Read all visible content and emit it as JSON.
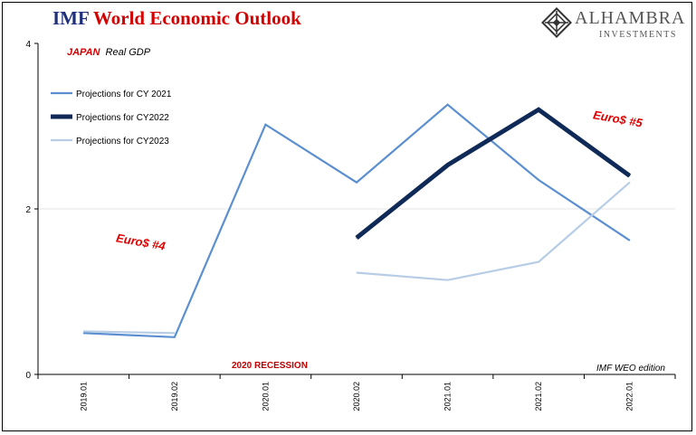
{
  "header": {
    "title_prefix": "IMF",
    "title_main": "World Economic Outlook",
    "logo_name": "ALHAMBRA",
    "logo_sub": "INVESTMENTS"
  },
  "chart_data": {
    "type": "line",
    "subtitle_country": "JAPAN",
    "subtitle_rest": "Real GDP",
    "categories": [
      "2019.01",
      "2019.02",
      "2020.01",
      "2020.02",
      "2021.01",
      "2021.02",
      "2022.01"
    ],
    "ylim": [
      0,
      4
    ],
    "yticks": [
      0,
      2,
      4
    ],
    "series": [
      {
        "name": "Projections for CY 2021",
        "color": "#5b8fd0",
        "width": 2.2,
        "values": [
          0.5,
          0.45,
          3.02,
          2.32,
          3.26,
          2.35,
          1.62
        ]
      },
      {
        "name": "Projections for CY2022",
        "color": "#0f2a57",
        "width": 5,
        "values": [
          null,
          null,
          null,
          1.65,
          2.53,
          3.2,
          2.4
        ]
      },
      {
        "name": "Projections for CY2023",
        "color": "#b7cde6",
        "width": 2.2,
        "values": [
          0.52,
          0.5,
          null,
          1.23,
          1.14,
          1.36,
          2.32
        ]
      }
    ],
    "annotations": [
      {
        "text": "Euro$ #4",
        "color": "#e00000"
      },
      {
        "text": "Euro$ #5",
        "color": "#e00000"
      },
      {
        "text": "2020 RECESSION",
        "color": "#c00000"
      },
      {
        "text": "IMF WEO edition",
        "color": "#000000"
      }
    ],
    "grid": "horizontal at 2"
  }
}
